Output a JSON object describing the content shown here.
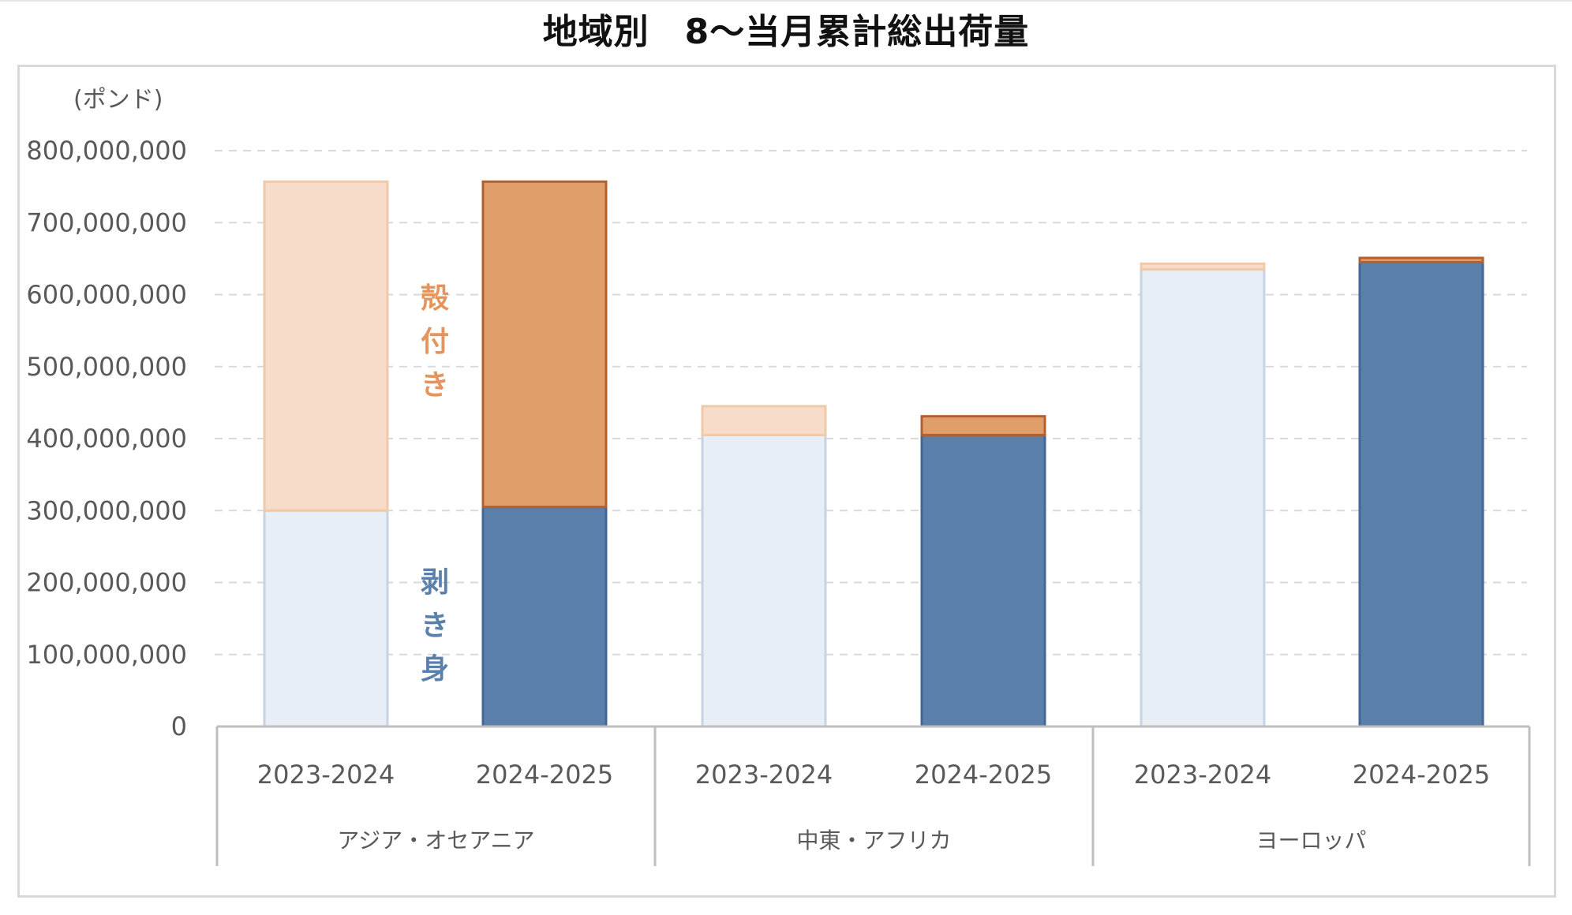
{
  "title": "地域別　8～当月累計総出荷量",
  "unit": "(ポンド)",
  "chart_data": {
    "type": "bar",
    "stacked": true,
    "title": "地域別　8～当月累計総出荷量",
    "ylabel": "(ポンド)",
    "ylim": [
      0,
      800000000
    ],
    "yticks": [
      "0",
      "100,000,000",
      "200,000,000",
      "300,000,000",
      "400,000,000",
      "500,000,000",
      "600,000,000",
      "700,000,000",
      "800,000,000"
    ],
    "grid": true,
    "categories": [
      "2023-2024",
      "2024-2025",
      "2023-2024",
      "2024-2025",
      "2023-2024",
      "2024-2025"
    ],
    "groups": [
      "アジア・オセアニア",
      "中東・アフリカ",
      "ヨーロッパ"
    ],
    "series": [
      {
        "name": "剥き身",
        "values": [
          300000000,
          305000000,
          405000000,
          405000000,
          635000000,
          645000000
        ]
      },
      {
        "name": "殻付き",
        "values": [
          457000000,
          452000000,
          40000000,
          26000000,
          8000000,
          6000000
        ]
      }
    ],
    "annotations": [
      {
        "text": "殻付き",
        "series": "殻付き"
      },
      {
        "text": "剥き身",
        "series": "剥き身"
      }
    ],
    "colors": {
      "shelled_prev_fill": "#e8eef5",
      "shelled_prev_stroke": "#c5d3e2",
      "shelled_curr_fill": "#5b80ab",
      "shelled_curr_stroke": "#44679a",
      "inshell_prev_fill": "#f6dcc9",
      "inshell_prev_stroke": "#f0c9a8",
      "inshell_curr_fill": "#e09e6a",
      "inshell_curr_stroke": "#b3602f",
      "inshell_text": "#e4945c",
      "shelled_text": "#5b80ab"
    }
  }
}
